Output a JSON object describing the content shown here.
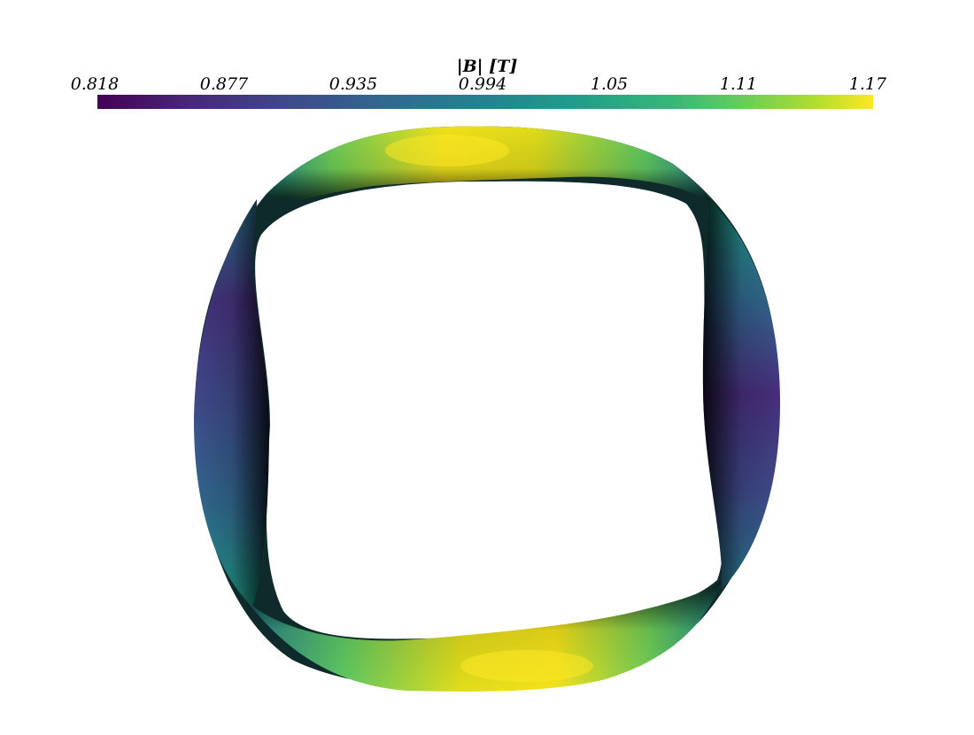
{
  "colorbar": {
    "title": "|B| [T]",
    "ticks": [
      "0.818",
      "0.877",
      "0.935",
      "0.994",
      "1.05",
      "1.11",
      "1.17"
    ],
    "colormap": "viridis",
    "colors": [
      "#440154",
      "#482878",
      "#3e4a89",
      "#31688e",
      "#26828e",
      "#1f9e89",
      "#35b779",
      "#6ece58",
      "#b5de2b",
      "#fde725"
    ]
  }
}
